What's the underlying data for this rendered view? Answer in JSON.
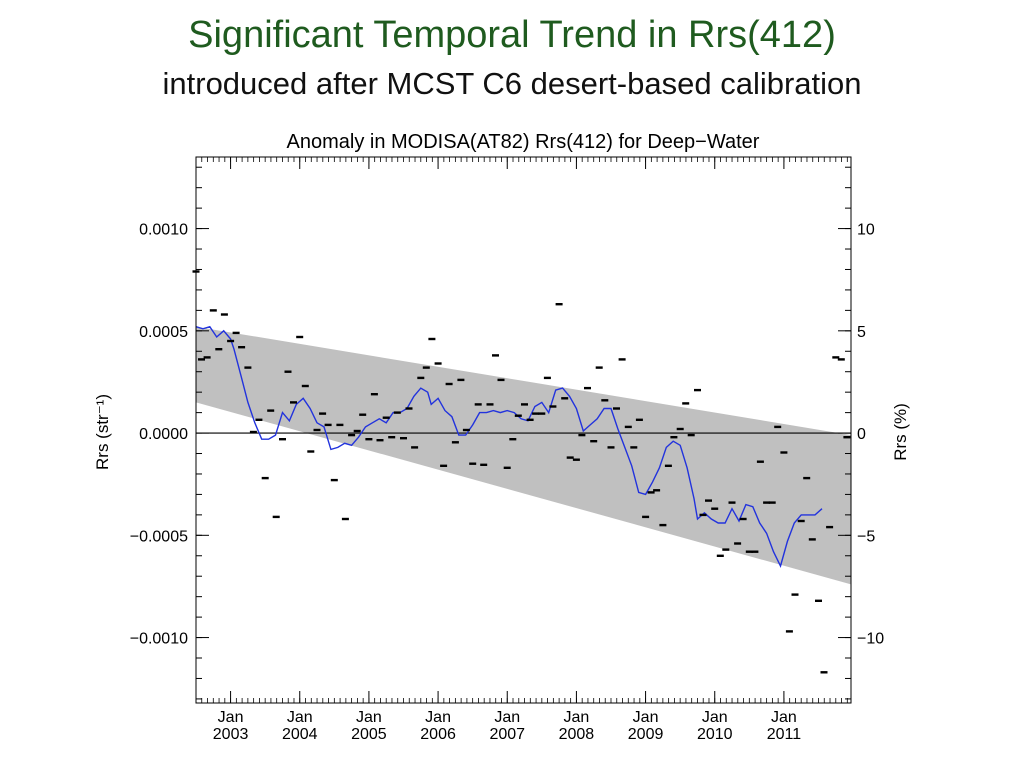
{
  "slide": {
    "title": "Significant Temporal Trend in Rrs(412)",
    "subtitle": "introduced after MCST C6 desert-based calibration"
  },
  "chart_data": {
    "type": "scatter",
    "title": "Anomaly in MODISA(AT82) Rrs(412) for Deep−Water",
    "ylabel": "Rrs (str⁻¹)",
    "y2label": "Rrs (%)",
    "ylim": [
      -0.00132,
      0.00135
    ],
    "y2lim": [
      -13.2,
      13.5
    ],
    "xlim": [
      2002.5,
      2011.97
    ],
    "yticks": [
      {
        "value": 0.001,
        "label": "0.0010"
      },
      {
        "value": 0.0005,
        "label": "0.0005"
      },
      {
        "value": 0.0,
        "label": "0.0000"
      },
      {
        "value": -0.0005,
        "label": "−0.0005"
      },
      {
        "value": -0.001,
        "label": "−0.0010"
      }
    ],
    "y2ticks": [
      {
        "value": 10,
        "label": "10"
      },
      {
        "value": 5,
        "label": "5"
      },
      {
        "value": 0,
        "label": "0"
      },
      {
        "value": -5,
        "label": "−5"
      },
      {
        "value": -10,
        "label": "−10"
      }
    ],
    "xticks": [
      {
        "value": 2003.0,
        "label1": "Jan",
        "label2": "2003"
      },
      {
        "value": 2004.0,
        "label1": "Jan",
        "label2": "2004"
      },
      {
        "value": 2005.0,
        "label1": "Jan",
        "label2": "2005"
      },
      {
        "value": 2006.0,
        "label1": "Jan",
        "label2": "2006"
      },
      {
        "value": 2007.0,
        "label1": "Jan",
        "label2": "2007"
      },
      {
        "value": 2008.0,
        "label1": "Jan",
        "label2": "2008"
      },
      {
        "value": 2009.0,
        "label1": "Jan",
        "label2": "2009"
      },
      {
        "value": 2010.0,
        "label1": "Jan",
        "label2": "2010"
      },
      {
        "value": 2011.0,
        "label1": "Jan",
        "label2": "2011"
      }
    ],
    "trend_band": {
      "color": "#c0c0c0",
      "upper": [
        [
          2002.5,
          0.00052
        ],
        [
          2011.97,
          -1e-05
        ]
      ],
      "lower": [
        [
          2002.5,
          0.00015
        ],
        [
          2011.97,
          -0.00074
        ]
      ]
    },
    "zero_line": 0.0,
    "scatter_color": "#000000",
    "points": [
      [
        2002.5,
        0.00079
      ],
      [
        2002.58,
        0.00036
      ],
      [
        2002.66,
        0.00037
      ],
      [
        2002.75,
        0.0006
      ],
      [
        2002.83,
        0.00041
      ],
      [
        2002.91,
        0.00058
      ],
      [
        2003.0,
        0.00045
      ],
      [
        2003.08,
        0.00049
      ],
      [
        2003.16,
        0.00042
      ],
      [
        2003.25,
        0.00032
      ],
      [
        2003.33,
        5e-06
      ],
      [
        2003.41,
        6.5e-05
      ],
      [
        2003.5,
        -0.00022
      ],
      [
        2003.58,
        0.00011
      ],
      [
        2003.66,
        -0.00041
      ],
      [
        2003.75,
        -3e-05
      ],
      [
        2003.83,
        0.0003
      ],
      [
        2003.91,
        0.00015
      ],
      [
        2004.0,
        0.00047
      ],
      [
        2004.08,
        0.00023
      ],
      [
        2004.16,
        -9e-05
      ],
      [
        2004.25,
        1.5e-05
      ],
      [
        2004.33,
        9.5e-05
      ],
      [
        2004.41,
        4e-05
      ],
      [
        2004.5,
        -0.00023
      ],
      [
        2004.58,
        4e-05
      ],
      [
        2004.66,
        -0.00042
      ],
      [
        2004.75,
        -1e-05
      ],
      [
        2004.83,
        1e-05
      ],
      [
        2004.91,
        9e-05
      ],
      [
        2005.0,
        -3e-05
      ],
      [
        2005.08,
        0.00019
      ],
      [
        2005.16,
        -3.5e-05
      ],
      [
        2005.25,
        7.5e-05
      ],
      [
        2005.33,
        -2e-05
      ],
      [
        2005.41,
        0.0001
      ],
      [
        2005.5,
        -2.5e-05
      ],
      [
        2005.58,
        0.00012
      ],
      [
        2005.66,
        -7e-05
      ],
      [
        2005.75,
        0.00027
      ],
      [
        2005.83,
        0.00032
      ],
      [
        2005.91,
        0.00046
      ],
      [
        2006.0,
        0.00034
      ],
      [
        2006.08,
        -0.00016
      ],
      [
        2006.16,
        0.00024
      ],
      [
        2006.25,
        -4.5e-05
      ],
      [
        2006.33,
        0.00026
      ],
      [
        2006.41,
        1.5e-05
      ],
      [
        2006.5,
        -0.00015
      ],
      [
        2006.58,
        0.00014
      ],
      [
        2006.66,
        -0.000155
      ],
      [
        2006.75,
        0.00014
      ],
      [
        2006.83,
        0.00038
      ],
      [
        2006.91,
        0.00026
      ],
      [
        2007.0,
        -0.00017
      ],
      [
        2007.08,
        -3e-05
      ],
      [
        2007.16,
        8.5e-05
      ],
      [
        2007.25,
        0.00014
      ],
      [
        2007.33,
        6.5e-05
      ],
      [
        2007.41,
        9.5e-05
      ],
      [
        2007.5,
        9.5e-05
      ],
      [
        2007.58,
        0.00027
      ],
      [
        2007.66,
        0.00013
      ],
      [
        2007.75,
        0.00063
      ],
      [
        2007.83,
        0.00017
      ],
      [
        2007.91,
        -0.00012
      ],
      [
        2008.0,
        -0.00013
      ],
      [
        2008.08,
        -1e-05
      ],
      [
        2008.16,
        0.00022
      ],
      [
        2008.25,
        -4e-05
      ],
      [
        2008.33,
        0.00032
      ],
      [
        2008.41,
        0.00016
      ],
      [
        2008.5,
        -7e-05
      ],
      [
        2008.58,
        0.00012
      ],
      [
        2008.66,
        0.00036
      ],
      [
        2008.75,
        3e-05
      ],
      [
        2008.83,
        -7e-05
      ],
      [
        2008.91,
        6.5e-05
      ],
      [
        2009.0,
        -0.00041
      ],
      [
        2009.08,
        -0.00029
      ],
      [
        2009.16,
        -0.00028
      ],
      [
        2009.25,
        -0.00045
      ],
      [
        2009.33,
        -0.00016
      ],
      [
        2009.41,
        -2e-05
      ],
      [
        2009.5,
        2e-05
      ],
      [
        2009.58,
        0.000145
      ],
      [
        2009.66,
        -1e-05
      ],
      [
        2009.75,
        0.00021
      ],
      [
        2009.83,
        -0.0004
      ],
      [
        2009.91,
        -0.00033
      ],
      [
        2010.0,
        -0.00037
      ],
      [
        2010.08,
        -0.0006
      ],
      [
        2010.16,
        -0.00057
      ],
      [
        2010.25,
        -0.00034
      ],
      [
        2010.33,
        -0.00054
      ],
      [
        2010.41,
        -0.00042
      ],
      [
        2010.5,
        -0.00058
      ],
      [
        2010.58,
        -0.00058
      ],
      [
        2010.66,
        -0.00014
      ],
      [
        2010.75,
        -0.00034
      ],
      [
        2010.83,
        -0.00034
      ],
      [
        2010.91,
        3e-05
      ],
      [
        2011.0,
        -9.5e-05
      ],
      [
        2011.08,
        -0.00097
      ],
      [
        2011.16,
        -0.00079
      ],
      [
        2011.25,
        -0.00043
      ],
      [
        2011.33,
        -0.00022
      ],
      [
        2011.41,
        -0.00052
      ],
      [
        2011.5,
        -0.00082
      ],
      [
        2011.58,
        -0.00117
      ],
      [
        2011.66,
        -0.00046
      ],
      [
        2011.75,
        0.00037
      ],
      [
        2011.83,
        0.00036
      ],
      [
        2011.91,
        -2e-05
      ]
    ],
    "line_color": "#2233dd",
    "smooth_line": [
      [
        2002.5,
        0.00052
      ],
      [
        2002.6,
        0.00051
      ],
      [
        2002.7,
        0.00052
      ],
      [
        2002.8,
        0.00047
      ],
      [
        2002.9,
        0.0005
      ],
      [
        2003.0,
        0.00046
      ],
      [
        2003.05,
        0.00041
      ],
      [
        2003.15,
        0.00028
      ],
      [
        2003.25,
        0.00015
      ],
      [
        2003.35,
        5e-05
      ],
      [
        2003.45,
        -3e-05
      ],
      [
        2003.55,
        -3e-05
      ],
      [
        2003.65,
        -1e-05
      ],
      [
        2003.75,
        0.0001
      ],
      [
        2003.85,
        6e-05
      ],
      [
        2003.95,
        0.00014
      ],
      [
        2004.05,
        0.00017
      ],
      [
        2004.15,
        0.00012
      ],
      [
        2004.25,
        5e-05
      ],
      [
        2004.35,
        3e-05
      ],
      [
        2004.45,
        -8e-05
      ],
      [
        2004.55,
        -7e-05
      ],
      [
        2004.65,
        -5e-05
      ],
      [
        2004.75,
        -6e-05
      ],
      [
        2004.85,
        -2e-05
      ],
      [
        2004.95,
        3e-05
      ],
      [
        2005.05,
        5e-05
      ],
      [
        2005.15,
        7e-05
      ],
      [
        2005.25,
        5e-05
      ],
      [
        2005.35,
        0.0001
      ],
      [
        2005.45,
        0.0001
      ],
      [
        2005.55,
        0.00012
      ],
      [
        2005.65,
        0.00018
      ],
      [
        2005.75,
        0.00022
      ],
      [
        2005.85,
        0.0002
      ],
      [
        2005.9,
        0.00014
      ],
      [
        2006.0,
        0.00017
      ],
      [
        2006.1,
        0.00011
      ],
      [
        2006.2,
        8e-05
      ],
      [
        2006.3,
        -1e-05
      ],
      [
        2006.4,
        -1e-05
      ],
      [
        2006.5,
        4e-05
      ],
      [
        2006.6,
        0.0001
      ],
      [
        2006.7,
        0.0001
      ],
      [
        2006.8,
        0.00011
      ],
      [
        2006.9,
        0.0001
      ],
      [
        2007.0,
        0.00011
      ],
      [
        2007.1,
        0.0001
      ],
      [
        2007.2,
        7e-05
      ],
      [
        2007.3,
        6e-05
      ],
      [
        2007.4,
        0.00013
      ],
      [
        2007.5,
        0.00015
      ],
      [
        2007.6,
        0.0001
      ],
      [
        2007.7,
        0.00021
      ],
      [
        2007.8,
        0.00022
      ],
      [
        2007.9,
        0.00018
      ],
      [
        2008.0,
        0.00012
      ],
      [
        2008.1,
        1e-05
      ],
      [
        2008.2,
        4e-05
      ],
      [
        2008.3,
        7e-05
      ],
      [
        2008.4,
        0.00012
      ],
      [
        2008.5,
        0.00012
      ],
      [
        2008.6,
        2e-05
      ],
      [
        2008.7,
        -7e-05
      ],
      [
        2008.8,
        -0.00016
      ],
      [
        2008.9,
        -0.00029
      ],
      [
        2009.0,
        -0.0003
      ],
      [
        2009.1,
        -0.00024
      ],
      [
        2009.2,
        -0.00017
      ],
      [
        2009.3,
        -7e-05
      ],
      [
        2009.4,
        -4e-05
      ],
      [
        2009.5,
        -6e-05
      ],
      [
        2009.6,
        -0.00017
      ],
      [
        2009.7,
        -0.00032
      ],
      [
        2009.75,
        -0.00042
      ],
      [
        2009.85,
        -0.00039
      ],
      [
        2009.95,
        -0.00042
      ],
      [
        2010.05,
        -0.00044
      ],
      [
        2010.15,
        -0.00044
      ],
      [
        2010.25,
        -0.00037
      ],
      [
        2010.35,
        -0.00043
      ],
      [
        2010.45,
        -0.00035
      ],
      [
        2010.55,
        -0.00036
      ],
      [
        2010.65,
        -0.00044
      ],
      [
        2010.75,
        -0.00049
      ],
      [
        2010.85,
        -0.00058
      ],
      [
        2010.95,
        -0.00065
      ],
      [
        2011.05,
        -0.00053
      ],
      [
        2011.15,
        -0.00044
      ],
      [
        2011.25,
        -0.0004
      ],
      [
        2011.35,
        -0.0004
      ],
      [
        2011.45,
        -0.0004
      ],
      [
        2011.55,
        -0.00037
      ]
    ]
  }
}
